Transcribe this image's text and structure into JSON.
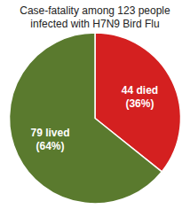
{
  "chart_data": {
    "type": "pie",
    "title": "Case-fatality among 123 people\ninfected with H7N9 Bird Flu",
    "values": [
      44,
      79
    ],
    "value_labels": [
      "44 died\n(36%)",
      "79 lived\n(64%)"
    ],
    "colors": [
      "#d42020",
      "#5a7a2e"
    ],
    "data_labels": true
  }
}
